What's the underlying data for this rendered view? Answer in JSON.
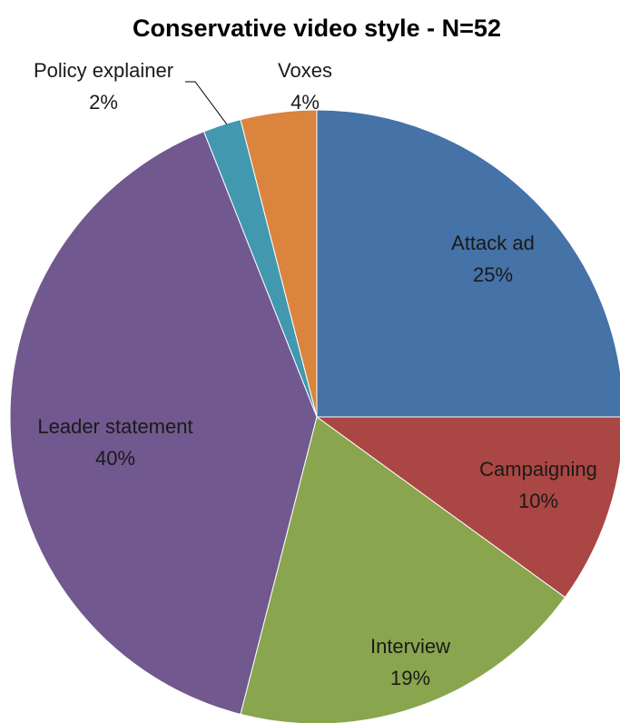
{
  "chart_data": {
    "type": "pie",
    "title": "Conservative video style - N=52",
    "start_angle_deg": 0,
    "direction": "clockwise",
    "slices": [
      {
        "label": "Attack ad",
        "percent_label": "25%",
        "value": 25,
        "color": "#4572A7"
      },
      {
        "label": "Campaigning",
        "percent_label": "10%",
        "value": 10,
        "color": "#AA4643"
      },
      {
        "label": "Interview",
        "percent_label": "19%",
        "value": 19,
        "color": "#89A54E"
      },
      {
        "label": "Leader statement",
        "percent_label": "40%",
        "value": 40,
        "color": "#71588F"
      },
      {
        "label": "Policy explainer",
        "percent_label": "2%",
        "value": 2,
        "color": "#4198AF"
      },
      {
        "label": "Voxes",
        "percent_label": "4%",
        "value": 4,
        "color": "#DB843D"
      }
    ]
  }
}
